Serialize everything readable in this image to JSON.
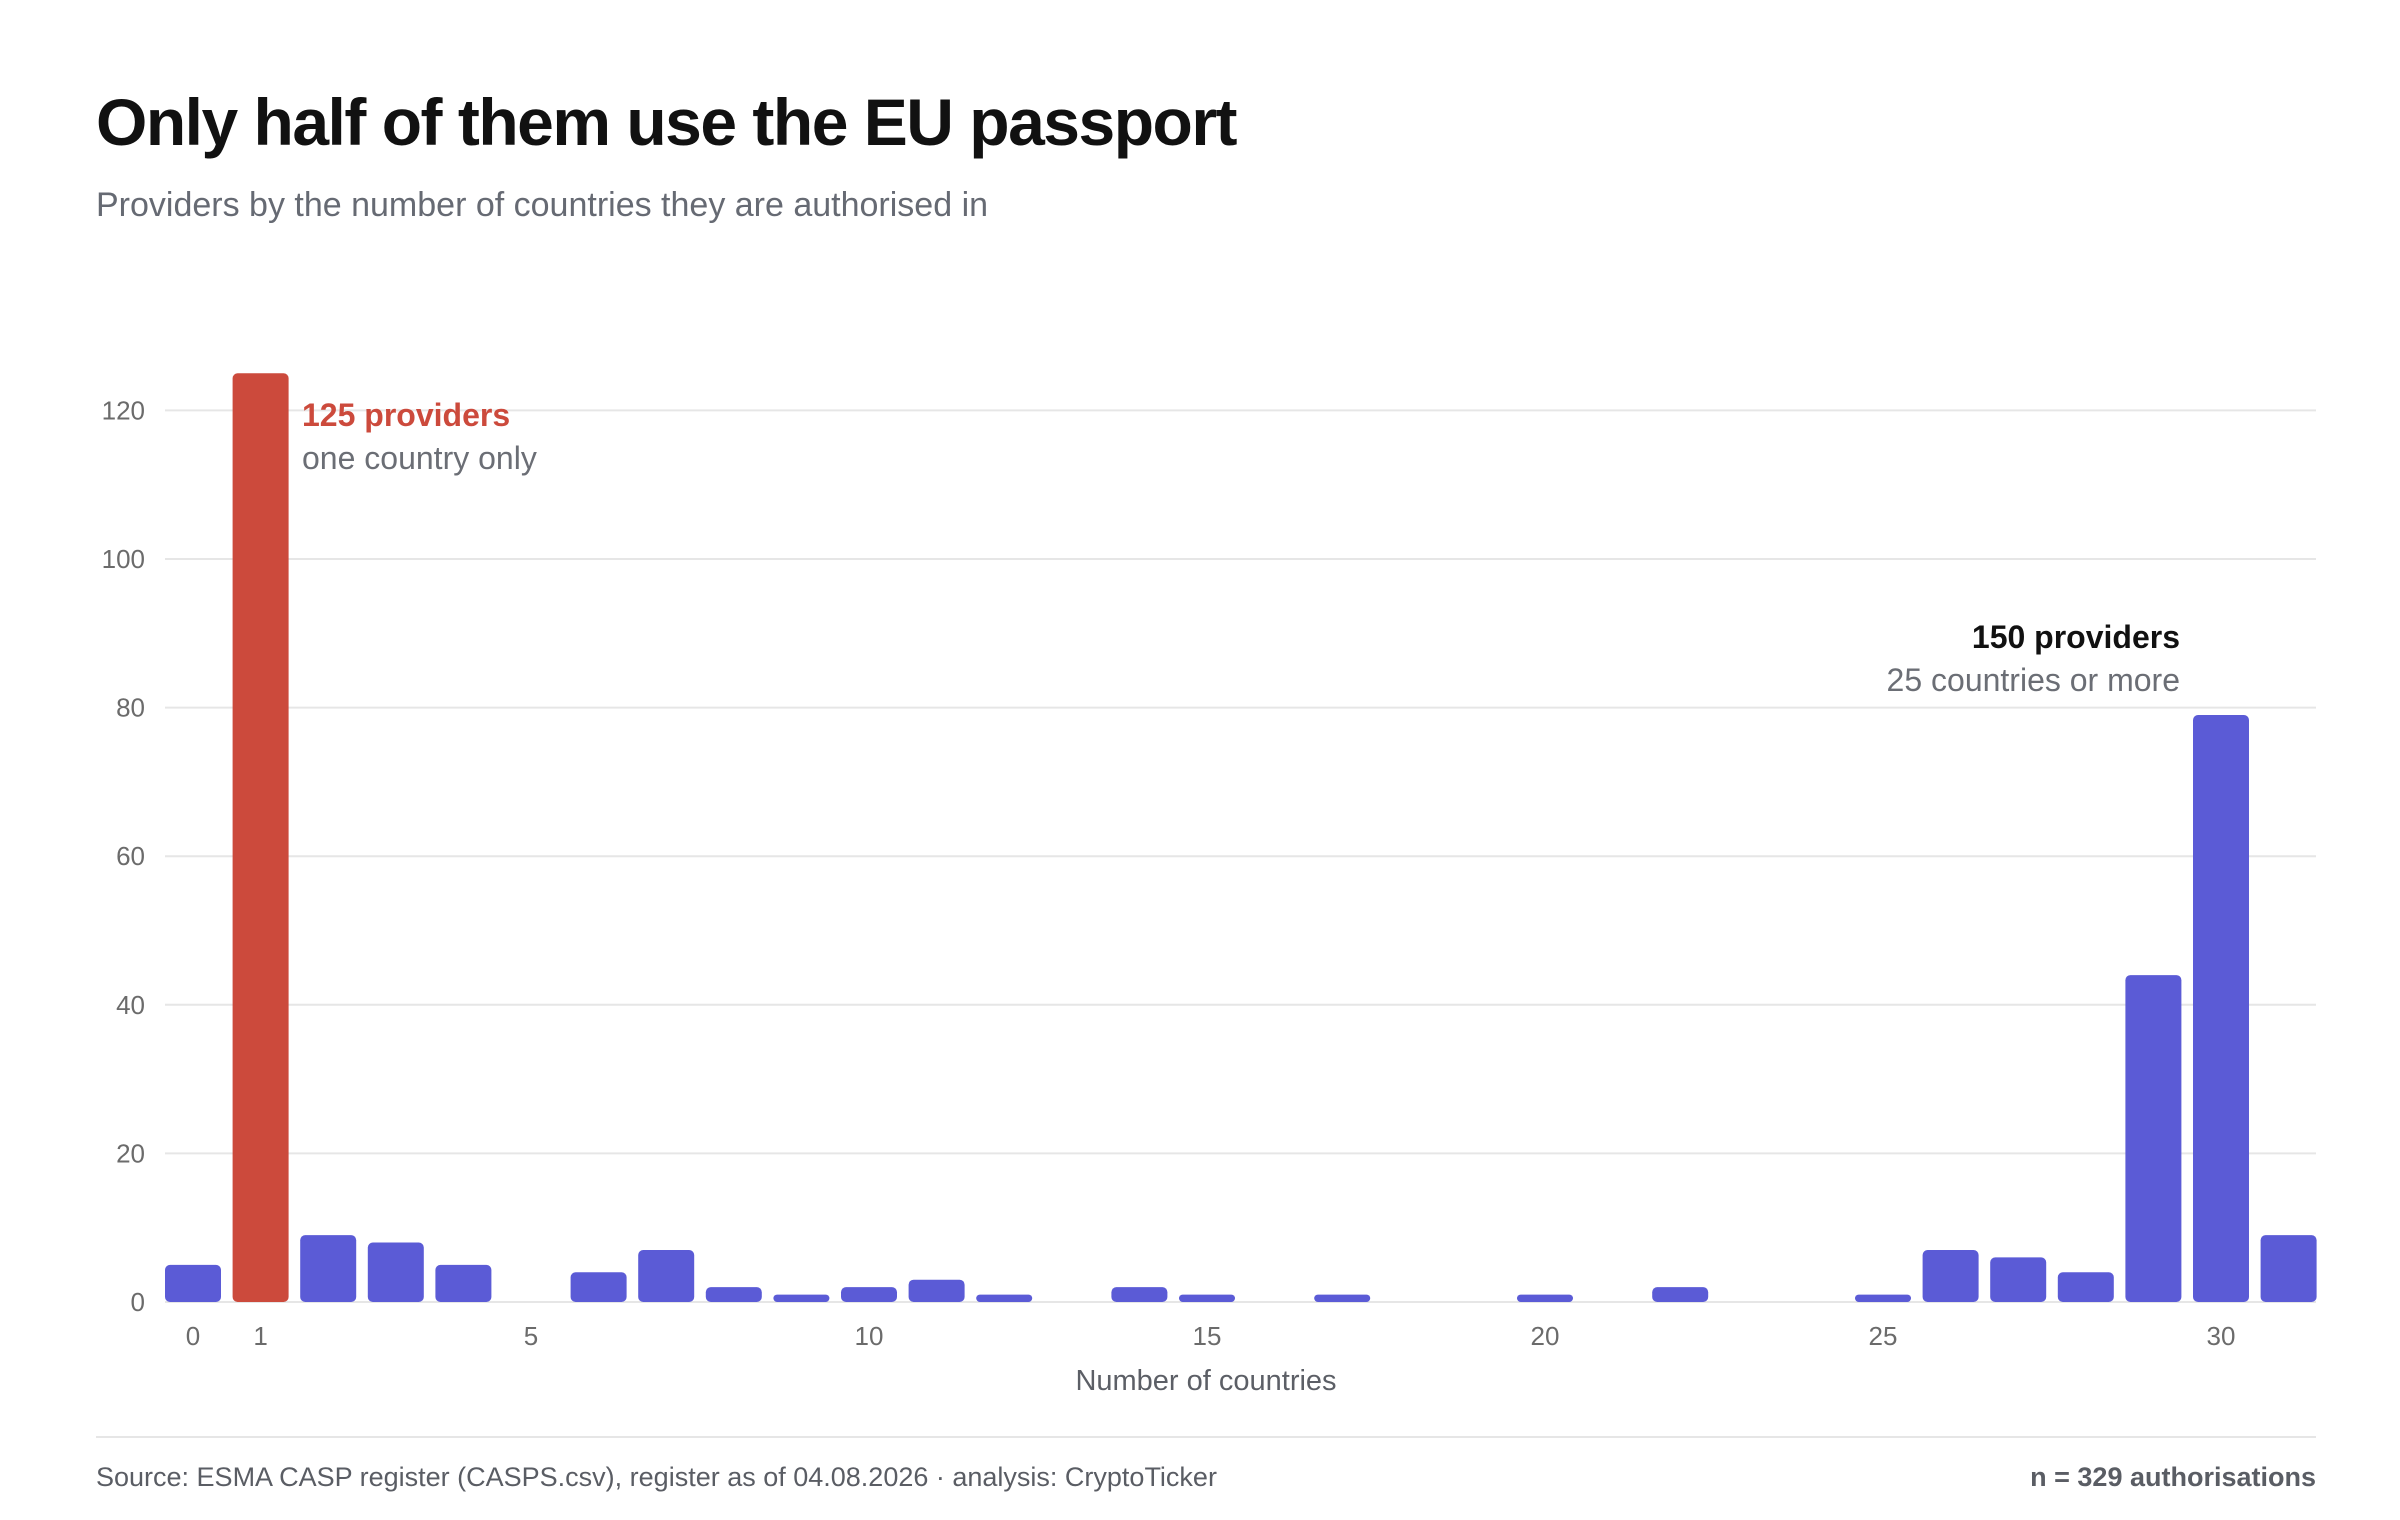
{
  "header": {
    "title": "Only half of them use the EU passport",
    "subtitle": "Providers by the number of countries they are authorised in"
  },
  "footer": {
    "source": "Source: ESMA CASP register (CASPS.csv), register as of 04.08.2026 · analysis: CryptoTicker",
    "n_note": "n = 329 authorisations"
  },
  "colors": {
    "bar": "#5b5bd6",
    "highlight": "#cc4a3c",
    "grid": "#e6e6e6"
  },
  "chart_data": {
    "type": "bar",
    "title": "Only half of them use the EU passport",
    "subtitle": "Providers by the number of countries they are authorised in",
    "xlabel": "Number of countries",
    "ylabel": "",
    "x": [
      0,
      1,
      2,
      3,
      4,
      5,
      6,
      7,
      8,
      9,
      10,
      11,
      12,
      13,
      14,
      15,
      16,
      17,
      18,
      19,
      20,
      21,
      22,
      23,
      24,
      25,
      26,
      27,
      28,
      29,
      30,
      31
    ],
    "values": [
      5,
      125,
      9,
      8,
      5,
      0,
      4,
      7,
      2,
      1,
      2,
      3,
      1,
      0,
      2,
      1,
      0,
      1,
      0,
      0,
      1,
      0,
      2,
      0,
      0,
      1,
      7,
      6,
      4,
      44,
      79,
      9
    ],
    "highlight_x": 1,
    "ylim": [
      0,
      125
    ],
    "yticks": [
      0,
      20,
      40,
      60,
      80,
      100,
      120
    ],
    "xticks": [
      0,
      1,
      5,
      10,
      15,
      20,
      25,
      30
    ],
    "grid": true,
    "annotations": [
      {
        "label": "125 providers",
        "sublabel": "one country only"
      },
      {
        "label": "150 providers",
        "sublabel": "25 countries or more"
      }
    ]
  }
}
